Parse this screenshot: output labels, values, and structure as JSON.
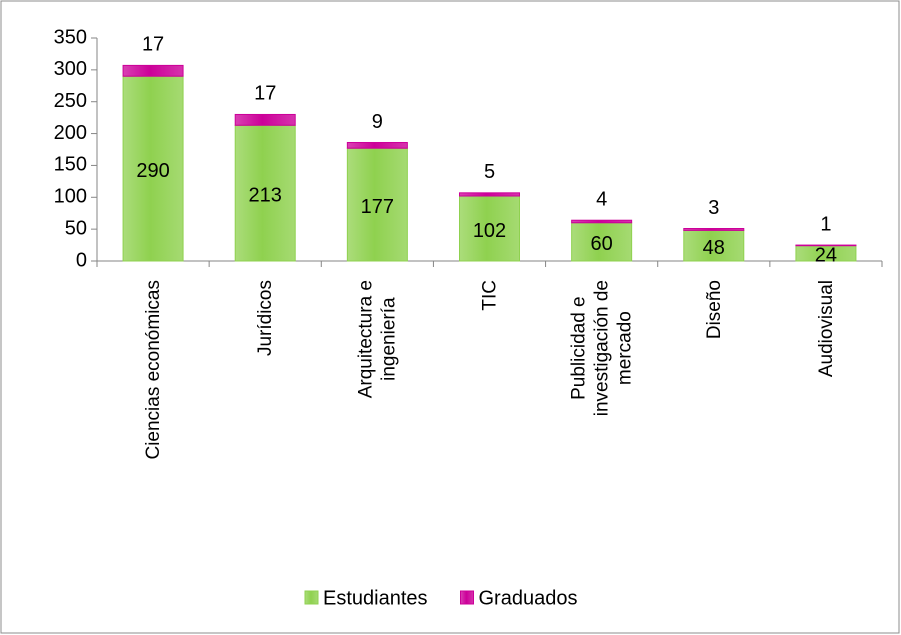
{
  "chart_data": {
    "type": "stacked_bar",
    "categories": [
      "Ciencias económicas",
      "Jurídicos",
      "Arquitectura e\ningeniería",
      "TIC",
      "Publicidad e\ninvestigación de\nmercado",
      "Diseño",
      "Audiovisual"
    ],
    "series": [
      {
        "name": "Estudiantes",
        "color": "#8fd14f",
        "values": [
          290,
          213,
          177,
          102,
          60,
          48,
          24
        ]
      },
      {
        "name": "Graduados",
        "color": "#cc0099",
        "values": [
          17,
          17,
          9,
          5,
          4,
          3,
          1
        ]
      }
    ],
    "ylim": [
      0,
      350
    ],
    "yticks": [
      0,
      50,
      100,
      150,
      200,
      250,
      300,
      350
    ],
    "legend": "bottom"
  }
}
